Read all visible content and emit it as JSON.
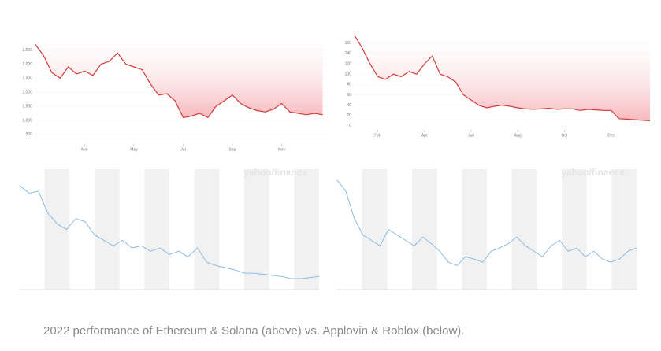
{
  "chart_data": [
    {
      "type": "line",
      "color": "#d43a3a",
      "fill": "#f4a7ad",
      "ylim": [
        300,
        4300
      ],
      "yticks": [
        {
          "value": 3500,
          "label": "3,500"
        },
        {
          "value": 3000,
          "label": "3,000"
        },
        {
          "value": 2500,
          "label": "2,500"
        },
        {
          "value": 2000,
          "label": "2,000"
        },
        {
          "value": 1500,
          "label": "1,500"
        },
        {
          "value": 1000,
          "label": "1,000"
        },
        500
      ],
      "xlim": [
        0,
        36
      ],
      "xticks": [
        {
          "value": 6,
          "label": "Mar"
        },
        {
          "value": 12,
          "label": "May"
        },
        {
          "value": 18,
          "label": "Jul"
        },
        {
          "value": 24,
          "label": "Sep"
        },
        {
          "value": 30,
          "label": "Nov"
        }
      ],
      "x": [
        0,
        1,
        2,
        3,
        4,
        5,
        6,
        7,
        8,
        9,
        10,
        11,
        12,
        13,
        14,
        15,
        16,
        17,
        18,
        19,
        20,
        21,
        22,
        23,
        24,
        25,
        26,
        27,
        28,
        29,
        30,
        31,
        32,
        33,
        34,
        35
      ],
      "values": [
        3700,
        3300,
        2700,
        2500,
        2900,
        2650,
        2750,
        2600,
        3000,
        3100,
        3400,
        3000,
        2900,
        2800,
        2300,
        1900,
        1950,
        1700,
        1100,
        1150,
        1250,
        1100,
        1500,
        1700,
        1900,
        1600,
        1450,
        1350,
        1300,
        1400,
        1600,
        1300,
        1250,
        1200,
        1250,
        1200
      ]
    },
    {
      "type": "line",
      "color": "#d43a3a",
      "fill": "#f4a7ad",
      "ylim": [
        0,
        190
      ],
      "yticks": [
        160,
        140,
        120,
        100,
        80,
        60,
        40,
        20,
        0
      ],
      "xlim": [
        0,
        38
      ],
      "xticks": [
        {
          "value": 3,
          "label": "Feb"
        },
        {
          "value": 9,
          "label": "Apr"
        },
        {
          "value": 15,
          "label": "Jun"
        },
        {
          "value": 21,
          "label": "Aug"
        },
        {
          "value": 27,
          "label": "Oct"
        },
        {
          "value": 33,
          "label": "Dec"
        }
      ],
      "x": [
        0,
        1,
        2,
        3,
        4,
        5,
        6,
        7,
        8,
        9,
        10,
        11,
        12,
        13,
        14,
        15,
        16,
        17,
        18,
        19,
        20,
        21,
        22,
        23,
        24,
        25,
        26,
        27,
        28,
        29,
        30,
        31,
        32,
        33,
        34,
        35,
        36,
        37,
        38
      ],
      "values": [
        175,
        150,
        120,
        95,
        90,
        100,
        95,
        105,
        100,
        120,
        135,
        100,
        95,
        85,
        60,
        50,
        40,
        35,
        38,
        40,
        38,
        35,
        33,
        32,
        33,
        34,
        32,
        33,
        33,
        30,
        32,
        31,
        30,
        30,
        14,
        13,
        12,
        11,
        10
      ]
    },
    {
      "type": "line",
      "color": "#7fb6e3",
      "watermark": "yahoo/finance",
      "ylim": [
        0,
        110
      ],
      "xlim": [
        0,
        32
      ],
      "x": [
        0,
        1,
        2,
        3,
        4,
        5,
        6,
        7,
        8,
        9,
        10,
        11,
        12,
        13,
        14,
        15,
        16,
        17,
        18,
        19,
        20,
        21,
        22,
        23,
        24,
        25,
        26,
        27,
        28,
        29,
        30,
        31,
        32
      ],
      "values": [
        95,
        88,
        90,
        70,
        60,
        55,
        65,
        62,
        50,
        45,
        40,
        45,
        38,
        40,
        35,
        38,
        32,
        35,
        30,
        38,
        25,
        22,
        20,
        18,
        15,
        15,
        14,
        13,
        12,
        10,
        10,
        11,
        12
      ]
    },
    {
      "type": "line",
      "color": "#7fb6e3",
      "watermark": "yahoo/finance",
      "ylim": [
        0,
        110
      ],
      "xlim": [
        0,
        35
      ],
      "x": [
        0,
        1,
        2,
        3,
        4,
        5,
        6,
        7,
        8,
        9,
        10,
        11,
        12,
        13,
        14,
        15,
        16,
        17,
        18,
        19,
        20,
        21,
        22,
        23,
        24,
        25,
        26,
        27,
        28,
        29,
        30,
        31,
        32,
        33,
        34,
        35
      ],
      "values": [
        100,
        90,
        65,
        50,
        45,
        40,
        55,
        50,
        45,
        40,
        48,
        42,
        35,
        25,
        22,
        30,
        28,
        25,
        35,
        38,
        42,
        48,
        40,
        35,
        30,
        40,
        45,
        35,
        38,
        30,
        35,
        28,
        25,
        28,
        35,
        38
      ]
    }
  ],
  "caption": "2022 performance of Ethereum & Solana (above) vs. Applovin & Roblox (below)."
}
